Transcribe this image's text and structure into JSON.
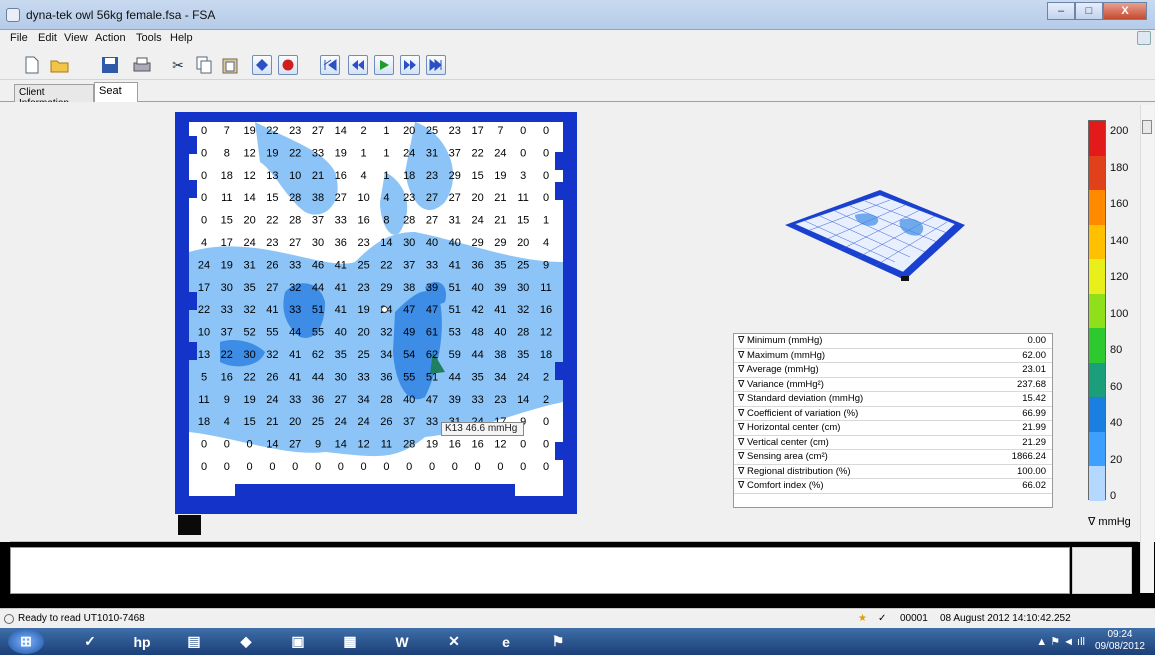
{
  "window": {
    "title": "dyna-tek owl 56kg female.fsa - FSA",
    "minimize": "–",
    "maximize": "□",
    "close": "X"
  },
  "menu": [
    "File",
    "Edit",
    "View",
    "Action",
    "Tools",
    "Help"
  ],
  "toolbar": {
    "new": "new-icon",
    "open": "open-icon",
    "save": "save-icon",
    "print": "print-icon",
    "cut": "cut-icon",
    "copy": "copy-icon",
    "paste": "paste-icon",
    "marker": "marker-icon",
    "record": "record-icon",
    "first": "first-frame-icon",
    "prev": "previous-frame-icon",
    "play": "play-icon",
    "next": "next-frame-icon",
    "last": "last-frame-icon"
  },
  "tabs": [
    {
      "label": "Client Information"
    },
    {
      "label": "Seat"
    }
  ],
  "pressure_map": {
    "rows": [
      [
        "0",
        "7",
        "19",
        "22",
        "23",
        "27",
        "14",
        "2",
        "1",
        "20",
        "25",
        "23",
        "17",
        "7",
        "0",
        "0"
      ],
      [
        "0",
        "8",
        "12",
        "19",
        "22",
        "33",
        "19",
        "1",
        "1",
        "24",
        "31",
        "37",
        "22",
        "24",
        "0",
        "0"
      ],
      [
        "0",
        "18",
        "12",
        "13",
        "10",
        "21",
        "16",
        "4",
        "1",
        "18",
        "23",
        "29",
        "15",
        "19",
        "3",
        "0"
      ],
      [
        "0",
        "11",
        "14",
        "15",
        "28",
        "38",
        "27",
        "10",
        "4",
        "23",
        "27",
        "27",
        "20",
        "21",
        "11",
        "0"
      ],
      [
        "0",
        "15",
        "20",
        "22",
        "28",
        "37",
        "33",
        "16",
        "8",
        "28",
        "27",
        "31",
        "24",
        "21",
        "15",
        "1"
      ],
      [
        "4",
        "17",
        "24",
        "23",
        "27",
        "30",
        "36",
        "23",
        "14",
        "30",
        "40",
        "40",
        "29",
        "29",
        "20",
        "4"
      ],
      [
        "24",
        "19",
        "31",
        "26",
        "33",
        "46",
        "41",
        "25",
        "22",
        "37",
        "33",
        "41",
        "36",
        "35",
        "25",
        "9"
      ],
      [
        "17",
        "30",
        "35",
        "27",
        "32",
        "44",
        "41",
        "23",
        "29",
        "38",
        "39",
        "51",
        "40",
        "39",
        "30",
        "11"
      ],
      [
        "22",
        "33",
        "32",
        "41",
        "33",
        "51",
        "41",
        "19",
        "24",
        "47",
        "47",
        "51",
        "42",
        "41",
        "32",
        "16"
      ],
      [
        "10",
        "37",
        "52",
        "55",
        "44",
        "55",
        "40",
        "20",
        "32",
        "49",
        "61",
        "53",
        "48",
        "40",
        "28",
        "12"
      ],
      [
        "13",
        "22",
        "30",
        "32",
        "41",
        "62",
        "35",
        "25",
        "34",
        "54",
        "62",
        "59",
        "44",
        "38",
        "35",
        "18"
      ],
      [
        "5",
        "16",
        "22",
        "26",
        "41",
        "44",
        "30",
        "33",
        "36",
        "55",
        "51",
        "44",
        "35",
        "34",
        "24",
        "2"
      ],
      [
        "11",
        "9",
        "19",
        "24",
        "33",
        "36",
        "27",
        "34",
        "28",
        "40",
        "47",
        "39",
        "33",
        "23",
        "14",
        "2"
      ],
      [
        "18",
        "4",
        "15",
        "21",
        "20",
        "25",
        "24",
        "24",
        "26",
        "37",
        "33",
        "31",
        "24",
        "17",
        "9",
        "0"
      ],
      [
        "0",
        "0",
        "0",
        "14",
        "27",
        "9",
        "14",
        "12",
        "11",
        "28",
        "19",
        "16",
        "16",
        "12",
        "0",
        "0"
      ],
      [
        "0",
        "0",
        "0",
        "0",
        "0",
        "0",
        "0",
        "0",
        "0",
        "0",
        "0",
        "0",
        "0",
        "0",
        "0",
        "0"
      ]
    ],
    "tooltip": "K13  46.6 mmHg"
  },
  "stats": [
    {
      "label": "∇ Minimum (mmHg)",
      "value": "0.00"
    },
    {
      "label": "∇ Maximum (mmHg)",
      "value": "62.00"
    },
    {
      "label": "∇ Average (mmHg)",
      "value": "23.01"
    },
    {
      "label": "∇ Variance (mmHg²)",
      "value": "237.68"
    },
    {
      "label": "∇ Standard deviation (mmHg)",
      "value": "15.42"
    },
    {
      "label": "∇ Coefficient of variation (%)",
      "value": "66.99"
    },
    {
      "label": "∇ Horizontal center (cm)",
      "value": "21.99"
    },
    {
      "label": "∇ Vertical center (cm)",
      "value": "21.29"
    },
    {
      "label": "∇ Sensing area (cm²)",
      "value": "1866.24"
    },
    {
      "label": "∇ Regional distribution (%)",
      "value": "100.00"
    },
    {
      "label": "∇ Comfort index (%)",
      "value": "66.02"
    }
  ],
  "legend": {
    "ticks": [
      "200",
      "180",
      "160",
      "140",
      "120",
      "100",
      "80",
      "60",
      "40",
      "20",
      "0"
    ],
    "unit": "∇ mmHg",
    "colors": [
      "#e21a1a",
      "#e0401a",
      "#ff8a00",
      "#ffc000",
      "#e9ef1a",
      "#8fe01a",
      "#2ec92e",
      "#1a9f7a",
      "#1a7fe0",
      "#3da0ff",
      "#b4d8ff"
    ]
  },
  "status": {
    "text": "Ready to read UT1010-7468",
    "frame": "00001",
    "datetime": "08 August 2012 14:10:42.252"
  },
  "taskbar": {
    "time": "09:24",
    "date": "09/08/2012"
  }
}
